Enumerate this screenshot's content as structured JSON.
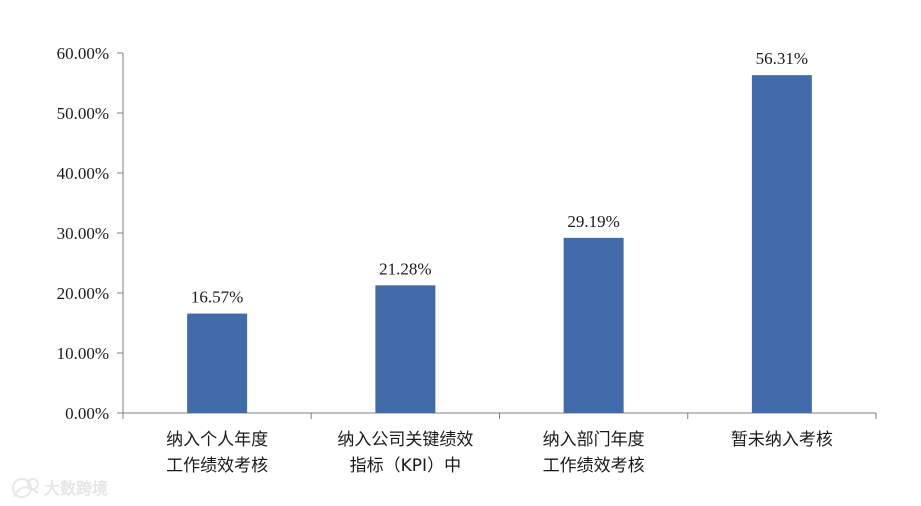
{
  "chart_data": {
    "type": "bar",
    "categories": [
      [
        "纳入个人年度",
        "工作绩效考核"
      ],
      [
        "纳入公司关键绩效",
        "指标（KPI）中"
      ],
      [
        "纳入部门年度",
        "工作绩效考核"
      ],
      [
        "暂未纳入考核"
      ]
    ],
    "values": [
      16.57,
      21.28,
      29.19,
      56.31
    ],
    "value_labels": [
      "16.57%",
      "21.28%",
      "29.19%",
      "56.31%"
    ],
    "y_ticks": [
      "0.00%",
      "10.00%",
      "20.00%",
      "30.00%",
      "40.00%",
      "50.00%",
      "60.00%"
    ],
    "ylim": [
      0,
      60
    ],
    "grid": false,
    "bar_color": "#426ba9"
  },
  "watermark": {
    "text": "大数跨境",
    "icon": "brand-logo-icon"
  }
}
